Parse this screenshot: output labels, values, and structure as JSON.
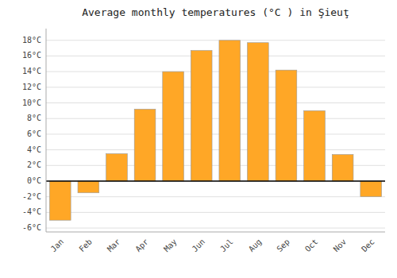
{
  "chart_data": {
    "type": "bar",
    "title": "Average monthly temperatures (°C ) in Şieuţ",
    "categories": [
      "Jan",
      "Feb",
      "Mar",
      "Apr",
      "May",
      "Jun",
      "Jul",
      "Aug",
      "Sep",
      "Oct",
      "Nov",
      "Dec"
    ],
    "values": [
      -5.0,
      -1.5,
      3.5,
      9.2,
      14.0,
      16.7,
      18.0,
      17.7,
      14.2,
      9.0,
      3.4,
      -2.0
    ],
    "color": "#FFA726",
    "ylim": [
      -6.5,
      19.5
    ],
    "yticks": [
      {
        "value": -6,
        "label": "-6°C"
      },
      {
        "value": -4,
        "label": "-4°C"
      },
      {
        "value": -2,
        "label": "-2°C"
      },
      {
        "value": 0,
        "label": "0°C"
      },
      {
        "value": 2,
        "label": "2°C"
      },
      {
        "value": 4,
        "label": "4°C"
      },
      {
        "value": 6,
        "label": "6°C"
      },
      {
        "value": 8,
        "label": "8°C"
      },
      {
        "value": 10,
        "label": "10°C"
      },
      {
        "value": 12,
        "label": "12°C"
      },
      {
        "value": 14,
        "label": "14°C"
      },
      {
        "value": 16,
        "label": "16°C"
      },
      {
        "value": 18,
        "label": "18°C"
      }
    ],
    "grid": true
  }
}
